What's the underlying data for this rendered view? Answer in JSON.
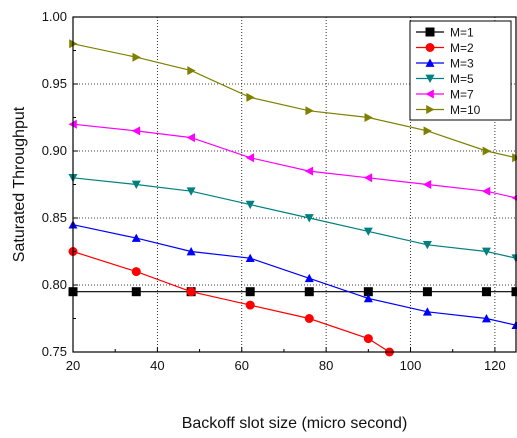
{
  "chart_data": {
    "type": "line",
    "xlabel": "Backoff slot size (micro second)",
    "ylabel": "Saturated Throughput",
    "xlim": [
      20,
      125
    ],
    "ylim": [
      0.75,
      1.0
    ],
    "xticks": [
      "20",
      "40",
      "60",
      "80",
      "100",
      "120"
    ],
    "xtick_values": [
      20,
      40,
      60,
      80,
      100,
      120
    ],
    "yticks": [
      "0.75",
      "0.80",
      "0.85",
      "0.90",
      "0.95",
      "1.00"
    ],
    "ytick_values": [
      0.75,
      0.8,
      0.85,
      0.9,
      0.95,
      1.0
    ],
    "grid": true,
    "legend_position": "top-right",
    "series": [
      {
        "name": "M=1",
        "color": "#000000",
        "marker": "square",
        "x": [
          20,
          35,
          48,
          62,
          76,
          90,
          104,
          118,
          125
        ],
        "y": [
          0.795,
          0.795,
          0.795,
          0.795,
          0.795,
          0.795,
          0.795,
          0.795,
          0.795
        ]
      },
      {
        "name": "M=2",
        "color": "#ff0000",
        "marker": "circle",
        "x": [
          20,
          35,
          48,
          62,
          76,
          90,
          95
        ],
        "y": [
          0.825,
          0.81,
          0.795,
          0.785,
          0.775,
          0.76,
          0.75
        ]
      },
      {
        "name": "M=3",
        "color": "#0000ff",
        "marker": "triangle-up",
        "x": [
          20,
          35,
          48,
          62,
          76,
          90,
          104,
          118,
          125
        ],
        "y": [
          0.845,
          0.835,
          0.825,
          0.82,
          0.805,
          0.79,
          0.78,
          0.775,
          0.77
        ]
      },
      {
        "name": "M=5",
        "color": "#008080",
        "marker": "triangle-down",
        "x": [
          20,
          35,
          48,
          62,
          76,
          90,
          104,
          118,
          125
        ],
        "y": [
          0.88,
          0.875,
          0.87,
          0.86,
          0.85,
          0.84,
          0.83,
          0.825,
          0.82
        ]
      },
      {
        "name": "M=7",
        "color": "#ff00ff",
        "marker": "triangle-left",
        "x": [
          20,
          35,
          48,
          62,
          76,
          90,
          104,
          118,
          125
        ],
        "y": [
          0.92,
          0.915,
          0.91,
          0.895,
          0.885,
          0.88,
          0.875,
          0.87,
          0.865
        ]
      },
      {
        "name": "M=10",
        "color": "#808000",
        "marker": "triangle-right",
        "x": [
          20,
          35,
          48,
          62,
          76,
          90,
          104,
          118,
          125
        ],
        "y": [
          0.98,
          0.97,
          0.96,
          0.94,
          0.93,
          0.925,
          0.915,
          0.9,
          0.895
        ]
      }
    ]
  }
}
